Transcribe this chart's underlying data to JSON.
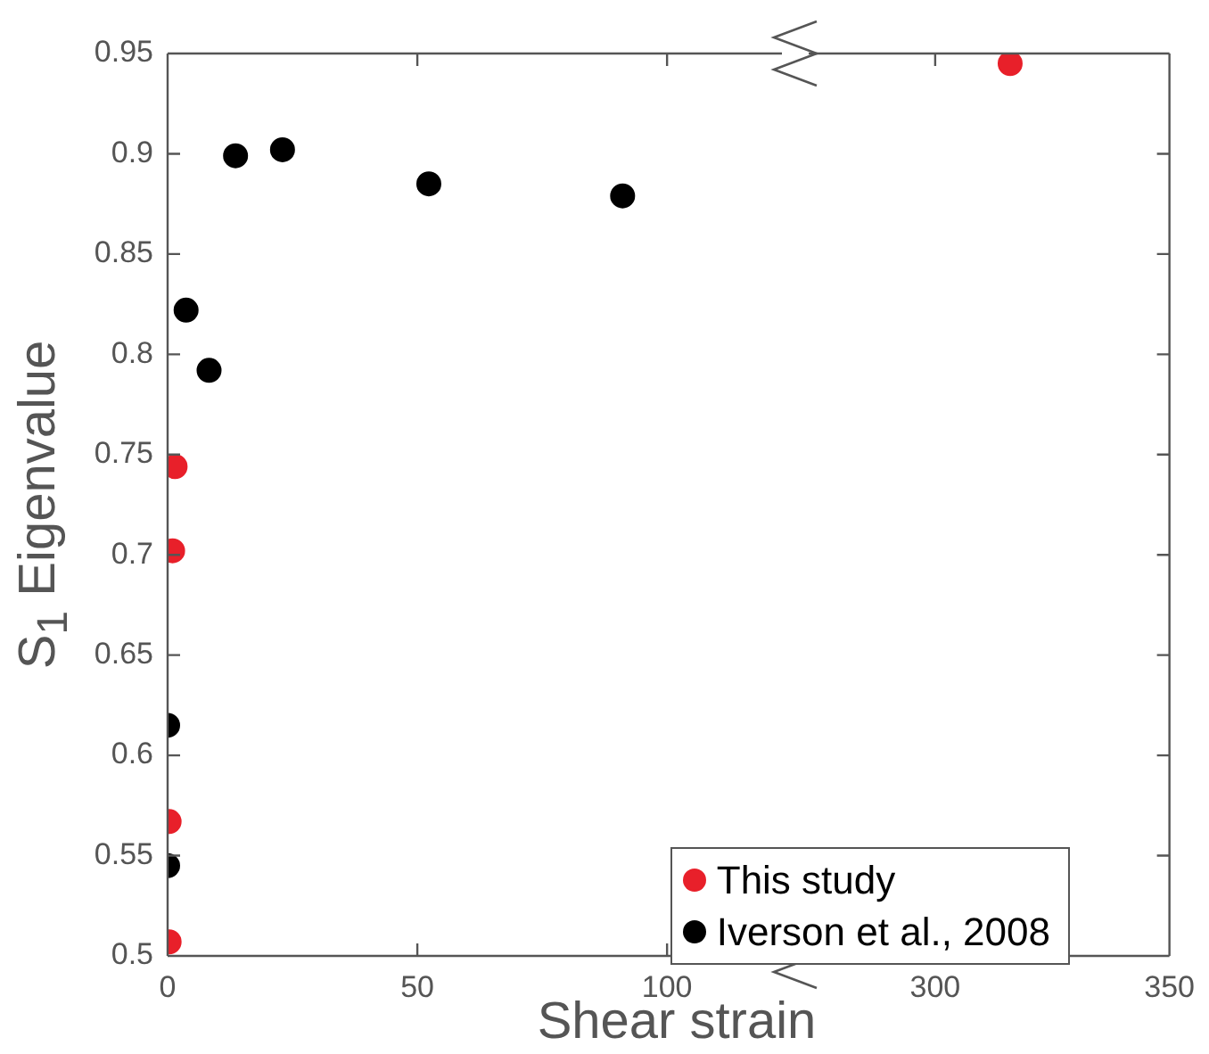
{
  "chart_data": [
    {
      "type": "scatter",
      "xlabel": "Shear strain",
      "ylabel": "S$_{1}$ Eigenvalue",
      "xlim": [
        0,
        123
      ],
      "xticks": [
        0,
        50,
        100
      ],
      "ylim": [
        0.5,
        0.95
      ],
      "yticks": [
        0.5,
        0.55,
        0.6,
        0.65,
        0.7,
        0.75,
        0.8,
        0.85,
        0.9,
        0.95
      ],
      "grid": false,
      "marker": "circle",
      "legend": "bottom right",
      "series": [
        {
          "name": "This study",
          "color": "#e8202a",
          "x": [
            1.5,
            1,
            0.3,
            0.3
          ],
          "values": [
            0.744,
            0.702,
            0.567,
            0.507
          ]
        },
        {
          "name": "Iverson et al., 2008",
          "color": "#000000",
          "x": [
            0,
            0,
            3.7,
            8.3,
            13.6,
            23,
            52.3,
            91.1
          ],
          "values": [
            0.615,
            0.545,
            0.822,
            0.792,
            0.899,
            0.902,
            0.885,
            0.879
          ]
        }
      ]
    },
    {
      "type": "scatter",
      "xlim": [
        273,
        350
      ],
      "xticks": [
        300,
        350
      ],
      "ylim": [
        0.5,
        0.95
      ],
      "yticks": [
        0.5,
        0.55,
        0.6,
        0.65,
        0.7,
        0.75,
        0.8,
        0.85,
        0.9,
        0.95
      ],
      "grid": false,
      "marker": "circle",
      "tick_labels": "x",
      "series": [
        {
          "color": "#e8202a",
          "x": [
            316
          ],
          "values": [
            0.945
          ]
        }
      ]
    }
  ]
}
